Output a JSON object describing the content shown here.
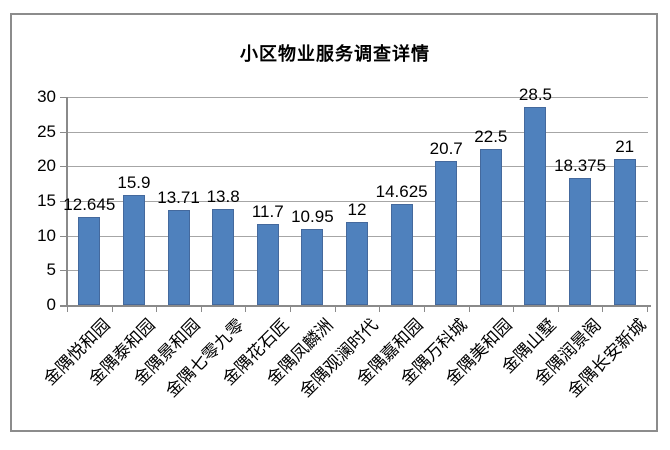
{
  "chart_data": {
    "type": "bar",
    "title": "小区物业服务调查详情",
    "categories": [
      "金隅悦和园",
      "金隅泰和园",
      "金隅景和园",
      "金隅七零九零",
      "金隅花石匠",
      "金隅凤麟洲",
      "金隅观澜时代",
      "金隅嘉和园",
      "金隅万科城",
      "金隅美和园",
      "金隅山墅",
      "金隅润景阁",
      "金隅长安新城"
    ],
    "values": [
      12.645,
      15.9,
      13.71,
      13.8,
      11.7,
      10.95,
      12,
      14.625,
      20.7,
      22.5,
      28.5,
      18.375,
      21
    ],
    "y_ticks": [
      0,
      5,
      10,
      15,
      20,
      25,
      30
    ],
    "ylim": [
      0,
      30
    ],
    "xlabel": "",
    "ylabel": "",
    "grid": true,
    "legend": false,
    "data_labels": true,
    "colors": {
      "bar_fill": "#4F81BD",
      "bar_border": "#44699D",
      "gridline": "#A6A6A6",
      "axis": "#8A8A8A",
      "frame_border": "#8C8C8C",
      "text": "#000000",
      "background": "#FFFFFF"
    }
  }
}
